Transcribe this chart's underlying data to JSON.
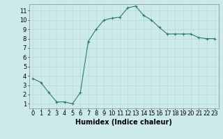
{
  "x": [
    0,
    1,
    2,
    3,
    4,
    5,
    6,
    7,
    8,
    9,
    10,
    11,
    12,
    13,
    14,
    15,
    16,
    17,
    18,
    19,
    20,
    21,
    22,
    23
  ],
  "y": [
    3.7,
    3.3,
    2.2,
    1.2,
    1.2,
    1.0,
    2.2,
    7.7,
    9.0,
    10.0,
    10.2,
    10.3,
    11.3,
    11.5,
    10.5,
    10.0,
    9.2,
    8.5,
    8.5,
    8.5,
    8.5,
    8.1,
    8.0,
    8.0
  ],
  "xlabel": "Humidex (Indice chaleur)",
  "xlim": [
    -0.5,
    23.5
  ],
  "ylim": [
    0.5,
    11.7
  ],
  "yticks": [
    1,
    2,
    3,
    4,
    5,
    6,
    7,
    8,
    9,
    10,
    11
  ],
  "xticks": [
    0,
    1,
    2,
    3,
    4,
    5,
    6,
    7,
    8,
    9,
    10,
    11,
    12,
    13,
    14,
    15,
    16,
    17,
    18,
    19,
    20,
    21,
    22,
    23
  ],
  "line_color": "#2d7a6e",
  "marker": "+",
  "bg_color": "#cdeaea",
  "grid_color": "#b8d8d8",
  "xlabel_fontsize": 7,
  "tick_fontsize": 6,
  "linewidth": 0.8,
  "markersize": 3,
  "markeredgewidth": 0.8
}
